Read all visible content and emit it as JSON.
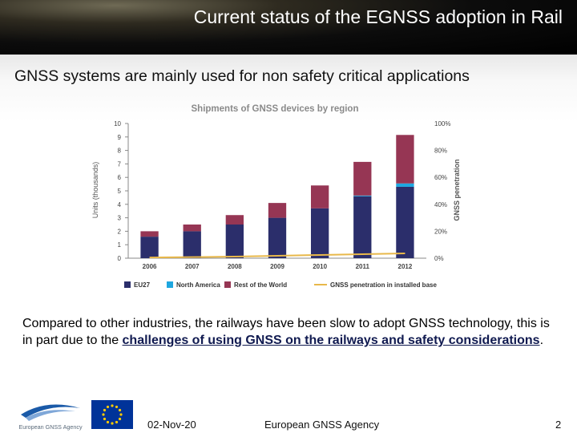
{
  "header": {
    "title": "Current status of the EGNSS adoption in Rail"
  },
  "subtitle": "GNSS systems are mainly used for non safety critical applications",
  "chart_data": {
    "type": "bar",
    "title": "Shipments of GNSS devices by region",
    "categories": [
      "2006",
      "2007",
      "2008",
      "2009",
      "2010",
      "2011",
      "2012"
    ],
    "ylabel": "Units (thousands)",
    "ylim": [
      0,
      10
    ],
    "yticks": [
      "0",
      "1",
      "2",
      "3",
      "4",
      "5",
      "6",
      "7",
      "8",
      "9",
      "10"
    ],
    "y2label": "GNSS penetration",
    "y2ticks": [
      "0%",
      "20%",
      "40%",
      "60%",
      "80%",
      "100%"
    ],
    "y2lim": [
      0,
      100
    ],
    "grid": false,
    "legend_position": "bottom",
    "series": [
      {
        "name": "EU27",
        "color": "#2b2e6b",
        "values": [
          1.6,
          2.0,
          2.5,
          3.0,
          3.7,
          4.6,
          5.3
        ]
      },
      {
        "name": "North America",
        "color": "#1ea7e0",
        "values": [
          0.0,
          0.0,
          0.0,
          0.0,
          0.0,
          0.05,
          0.25
        ]
      },
      {
        "name": "Rest of the World",
        "color": "#963654",
        "values": [
          0.4,
          0.5,
          0.7,
          1.1,
          1.7,
          2.5,
          3.6
        ]
      }
    ],
    "line_series": {
      "name": "GNSS penetration in installed base",
      "color": "#e8b84a",
      "values": [
        0.5,
        0.8,
        1.2,
        1.8,
        2.4,
        3.0,
        3.6
      ]
    }
  },
  "body": {
    "text_before": "Compared to other industries, the railways have been slow to adopt GNSS technology, this is in part due to the ",
    "highlight": "challenges of using GNSS on the railways and safety considerations",
    "text_after": "."
  },
  "footer": {
    "logo_caption": "European GNSS Agency",
    "date": "02-Nov-20",
    "agency": "European GNSS Agency",
    "page_number": "2"
  },
  "colors": {
    "header_bg": "#000000",
    "title_text": "#ffffff",
    "eu_flag": "#003399",
    "eu_stars": "#ffcc00"
  }
}
